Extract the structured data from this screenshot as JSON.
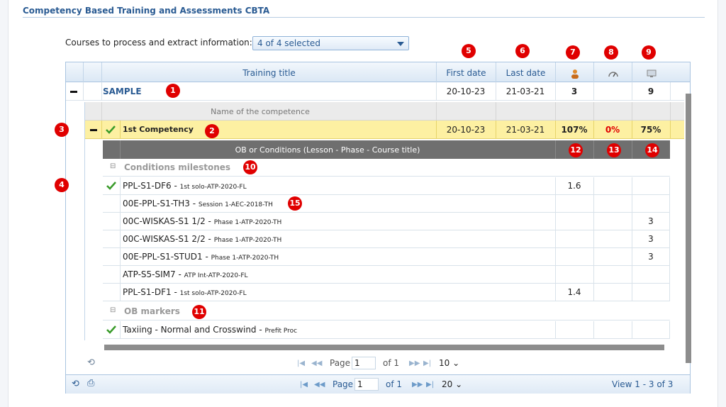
{
  "panel_title": "Competency Based Training and Assessments CBTA",
  "courses": {
    "label": "Courses to process and extract information:",
    "selected": "4 of 4 selected"
  },
  "badges": [
    "1",
    "2",
    "3",
    "4",
    "5",
    "6",
    "7",
    "8",
    "9",
    "10",
    "11",
    "12",
    "13",
    "14",
    "15"
  ],
  "headers": {
    "training_title": "Training title",
    "first_date": "First date",
    "last_date": "Last date"
  },
  "icons": {
    "col7": "person-icon",
    "col8": "gauge-icon",
    "col9": "monitor-icon"
  },
  "sample_row": {
    "title": "SAMPLE",
    "first": "20-10-23",
    "last": "21-03-21",
    "c7": "3",
    "c8": "",
    "c9": "9"
  },
  "competence_header": "Name of the competence",
  "competency_row": {
    "title": "1st Competency",
    "first": "20-10-23",
    "last": "21-03-21",
    "c7": "107%",
    "c8": "0%",
    "c9": "75%"
  },
  "ob_header": "OB or Conditions (Lesson - Phase - Course title)",
  "groups": {
    "conditions": "Conditions milestones",
    "markers": "OB markers"
  },
  "conditions": [
    {
      "code": "PPL-S1-DF6",
      "sub": "1st solo-ATP-2020-FL",
      "c7": "1.6",
      "c8": "",
      "c9": "",
      "check": true
    },
    {
      "code": "00E-PPL-S1-TH3",
      "sub": "Session 1-AEC-2018-TH",
      "c7": "",
      "c8": "",
      "c9": "",
      "check": false
    },
    {
      "code": "00C-WISKAS-S1 1/2",
      "sub": "Phase 1-ATP-2020-TH",
      "c7": "",
      "c8": "",
      "c9": "3",
      "check": false
    },
    {
      "code": "00C-WISKAS-S1 2/2",
      "sub": "Phase 1-ATP-2020-TH",
      "c7": "",
      "c8": "",
      "c9": "3",
      "check": false
    },
    {
      "code": "00E-PPL-S1-STUD1",
      "sub": "Phase 1-ATP-2020-TH",
      "c7": "",
      "c8": "",
      "c9": "3",
      "check": false
    },
    {
      "code": "ATP-S5-SIM7",
      "sub": "ATP Int-ATP-2020-FL",
      "c7": "",
      "c8": "",
      "c9": "",
      "check": false
    },
    {
      "code": "PPL-S1-DF1",
      "sub": "1st solo-ATP-2020-FL",
      "c7": "1.4",
      "c8": "",
      "c9": "",
      "check": false
    }
  ],
  "markers": [
    {
      "code": "Taxiing - Normal and Crosswind",
      "sub": "Prefit Proc",
      "check": true
    }
  ],
  "inner_pager": {
    "page_label": "Page",
    "page": "1",
    "of": "of 1",
    "size": "10"
  },
  "outer_pager": {
    "page_label": "Page",
    "page": "1",
    "of": "of 1",
    "size": "20",
    "view": "View 1 - 3 of 3"
  }
}
